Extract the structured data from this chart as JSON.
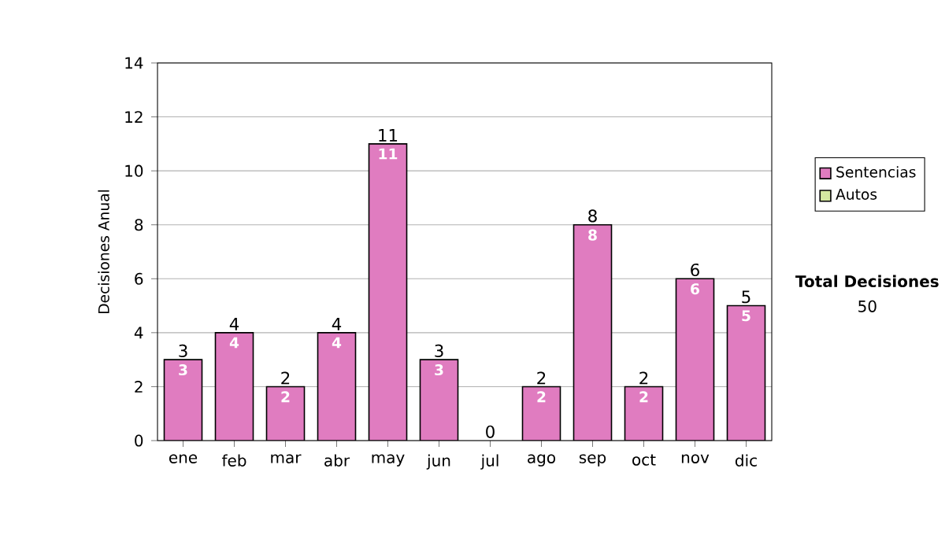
{
  "chart_data": {
    "type": "bar",
    "stacked": true,
    "ylabel": "Decisiones Anual",
    "categories": [
      "ene",
      "feb",
      "mar",
      "abr",
      "may",
      "jun",
      "jul",
      "ago",
      "sep",
      "oct",
      "nov",
      "dic"
    ],
    "series": [
      {
        "name": "Sentencias",
        "color": "#e07cc0",
        "values": [
          3,
          4,
          2,
          4,
          11,
          3,
          0,
          2,
          8,
          2,
          6,
          5
        ],
        "value_labels": [
          "3",
          "4",
          "2",
          "4",
          "11",
          "3",
          null,
          "2",
          "8",
          "2",
          "6",
          "5"
        ]
      },
      {
        "name": "Autos",
        "color": "#d4e8a0",
        "values": [
          0,
          0,
          0,
          0,
          0,
          0,
          0,
          0,
          0,
          0,
          0,
          0
        ]
      }
    ],
    "totals": [
      "3",
      "4",
      "2",
      "4",
      "11",
      "3",
      "0",
      "2",
      "8",
      "2",
      "6",
      "5"
    ],
    "ylim": [
      0,
      14
    ],
    "yticks": [
      0,
      2,
      4,
      6,
      8,
      10,
      12,
      14
    ],
    "grid": "y",
    "legend": "right",
    "annotations": [
      "Total Decisiones",
      "50"
    ]
  }
}
